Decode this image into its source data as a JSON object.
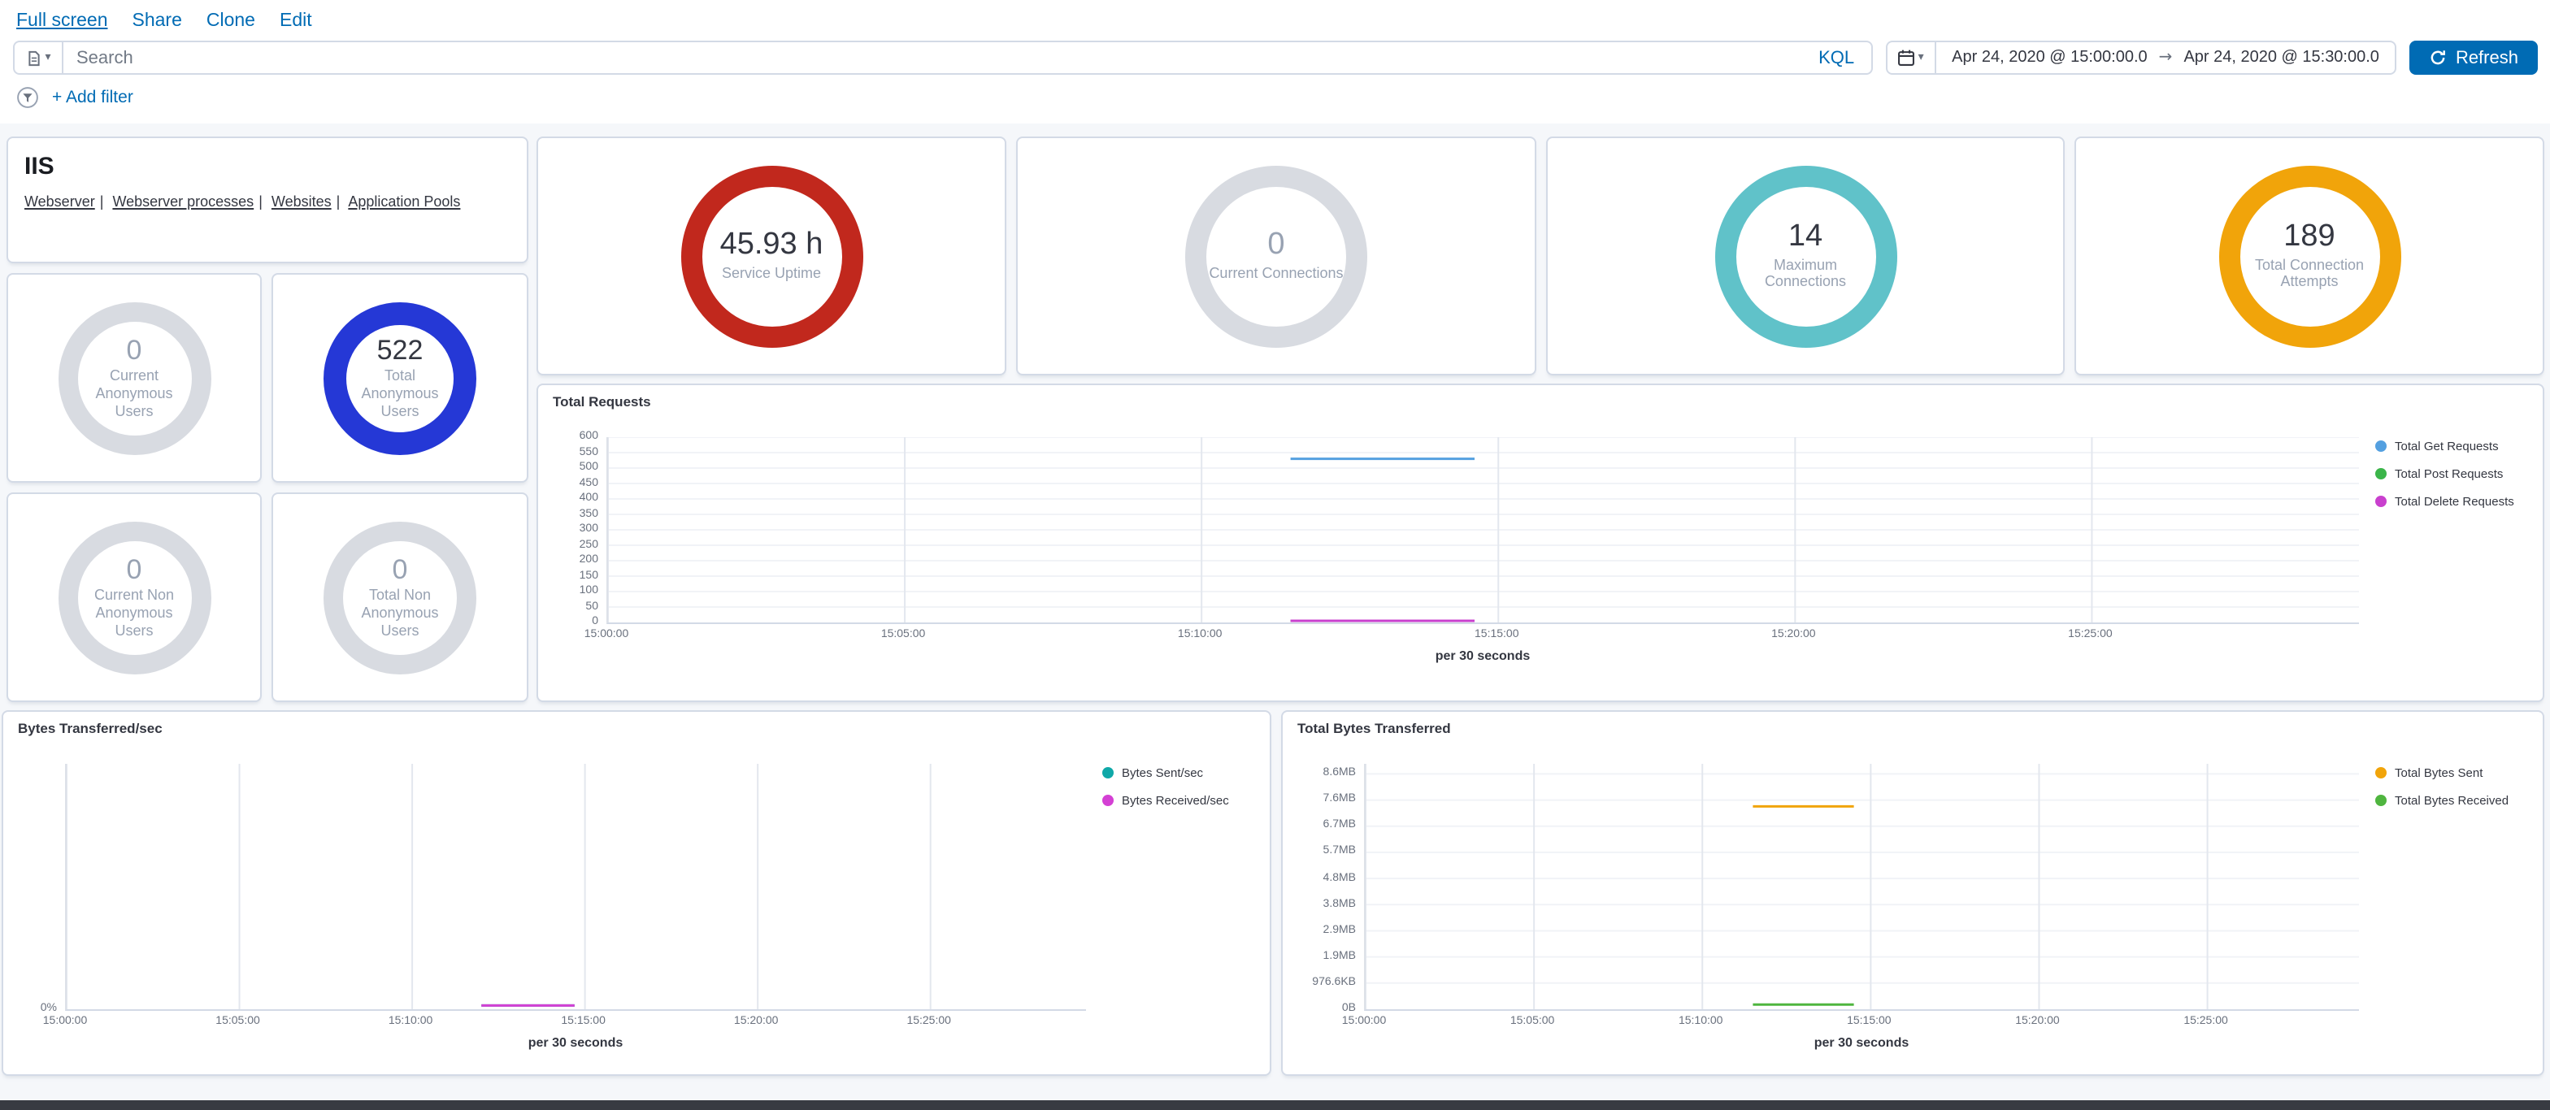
{
  "topnav": {
    "links": [
      "Full screen",
      "Share",
      "Clone",
      "Edit"
    ]
  },
  "query_bar": {
    "search_placeholder": "Search",
    "kql_label": "KQL",
    "date_from": "Apr 24, 2020 @ 15:00:00.0",
    "range_separator": "→",
    "date_to": "Apr 24, 2020 @ 15:30:00.0",
    "refresh_label": "Refresh",
    "refresh_bg": "#006BB4"
  },
  "filter_bar": {
    "add_filter_label": "+ Add filter"
  },
  "iis_panel": {
    "title": "IIS",
    "separator": "|",
    "links": [
      "Webserver",
      "Webserver processes",
      "Websites",
      "Application Pools"
    ]
  },
  "gauges": [
    {
      "value": "45.93 h",
      "label": "Service Uptime",
      "color": "#C1281D"
    },
    {
      "value": "0",
      "label": "Current Connections",
      "color": "#D8DBE1"
    },
    {
      "value": "14",
      "label": "Maximum Connections",
      "color": "#60C2C9"
    },
    {
      "value": "189",
      "label": "Total Connection Attempts",
      "color": "#F1A40A"
    },
    {
      "value": "0",
      "label": "Current Anonymous Users",
      "color": "#D8DBE1"
    },
    {
      "value": "522",
      "label": "Total Anonymous Users",
      "color": "#2538D6"
    },
    {
      "value": "0",
      "label": "Current Non Anonymous Users",
      "color": "#D8DBE1"
    },
    {
      "value": "0",
      "label": "Total Non Anonymous Users",
      "color": "#D8DBE1"
    }
  ],
  "chart_data": [
    {
      "id": "total-requests",
      "type": "line",
      "title": "Total Requests",
      "x_axis_label": "per 30 seconds",
      "x_domain": [
        0,
        29.5
      ],
      "x_ticks": [
        {
          "v": 0,
          "label": "15:00:00"
        },
        {
          "v": 5,
          "label": "15:05:00"
        },
        {
          "v": 10,
          "label": "15:10:00"
        },
        {
          "v": 15,
          "label": "15:15:00"
        },
        {
          "v": 20,
          "label": "15:20:00"
        },
        {
          "v": 25,
          "label": "15:25:00"
        }
      ],
      "y_domain": [
        0,
        600
      ],
      "y_ticks": [
        {
          "v": 0,
          "label": "0"
        },
        {
          "v": 50,
          "label": "50"
        },
        {
          "v": 100,
          "label": "100"
        },
        {
          "v": 150,
          "label": "150"
        },
        {
          "v": 200,
          "label": "200"
        },
        {
          "v": 250,
          "label": "250"
        },
        {
          "v": 300,
          "label": "300"
        },
        {
          "v": 350,
          "label": "350"
        },
        {
          "v": 400,
          "label": "400"
        },
        {
          "v": 450,
          "label": "450"
        },
        {
          "v": 500,
          "label": "500"
        },
        {
          "v": 550,
          "label": "550"
        },
        {
          "v": 600,
          "label": "600"
        }
      ],
      "series": [
        {
          "name": "Total Get Requests",
          "color": "#54A0E0",
          "points": [
            [
              11.5,
              530
            ],
            [
              14.6,
              530
            ]
          ]
        },
        {
          "name": "Total Post Requests",
          "color": "#3BB54A",
          "points": [
            [
              11.5,
              5
            ],
            [
              14.6,
              5
            ]
          ]
        },
        {
          "name": "Total Delete Requests",
          "color": "#C940CE",
          "points": [
            [
              11.5,
              5
            ],
            [
              14.6,
              5
            ]
          ]
        }
      ],
      "legend_position": "right",
      "grid": true
    },
    {
      "id": "bytes-transferred-per-sec",
      "type": "line",
      "title": "Bytes Transferred/sec",
      "x_axis_label": "per 30 seconds",
      "x_domain": [
        0,
        29.5
      ],
      "x_ticks": [
        {
          "v": 0,
          "label": "15:00:00"
        },
        {
          "v": 5,
          "label": "15:05:00"
        },
        {
          "v": 10,
          "label": "15:10:00"
        },
        {
          "v": 15,
          "label": "15:15:00"
        },
        {
          "v": 20,
          "label": "15:20:00"
        },
        {
          "v": 25,
          "label": "15:25:00"
        }
      ],
      "y_domain": [
        0,
        1
      ],
      "y_ticks": [
        {
          "v": 0,
          "label": "0%"
        }
      ],
      "series": [
        {
          "name": "Bytes Sent/sec",
          "color": "#0FA8A8",
          "points": [
            [
              12,
              0.015
            ],
            [
              14.7,
              0.015
            ]
          ]
        },
        {
          "name": "Bytes Received/sec",
          "color": "#D440D4",
          "points": [
            [
              12,
              0.015
            ],
            [
              14.7,
              0.015
            ]
          ]
        }
      ],
      "legend_position": "right",
      "grid": true
    },
    {
      "id": "total-bytes-transferred",
      "type": "line",
      "title": "Total Bytes Transferred",
      "x_axis_label": "per 30 seconds",
      "x_domain": [
        0,
        29.5
      ],
      "x_ticks": [
        {
          "v": 0,
          "label": "15:00:00"
        },
        {
          "v": 5,
          "label": "15:05:00"
        },
        {
          "v": 10,
          "label": "15:10:00"
        },
        {
          "v": 15,
          "label": "15:15:00"
        },
        {
          "v": 20,
          "label": "15:20:00"
        },
        {
          "v": 25,
          "label": "15:25:00"
        }
      ],
      "y_domain": [
        0,
        8.95
      ],
      "y_unit": "MB",
      "y_ticks": [
        {
          "v": 0,
          "label": "0B"
        },
        {
          "v": 0.954,
          "label": "976.6KB"
        },
        {
          "v": 1.907,
          "label": "1.9MB"
        },
        {
          "v": 2.861,
          "label": "2.9MB"
        },
        {
          "v": 3.815,
          "label": "3.8MB"
        },
        {
          "v": 4.768,
          "label": "4.8MB"
        },
        {
          "v": 5.722,
          "label": "5.7MB"
        },
        {
          "v": 6.676,
          "label": "6.7MB"
        },
        {
          "v": 7.629,
          "label": "7.6MB"
        },
        {
          "v": 8.583,
          "label": "8.6MB"
        }
      ],
      "series": [
        {
          "name": "Total Bytes Sent",
          "color": "#F1A40A",
          "points": [
            [
              11.5,
              7.4
            ],
            [
              14.5,
              7.4
            ]
          ]
        },
        {
          "name": "Total Bytes Received",
          "color": "#4FB53F",
          "points": [
            [
              11.5,
              0.17
            ],
            [
              14.5,
              0.17
            ]
          ]
        }
      ],
      "legend_position": "right",
      "grid": true
    }
  ]
}
